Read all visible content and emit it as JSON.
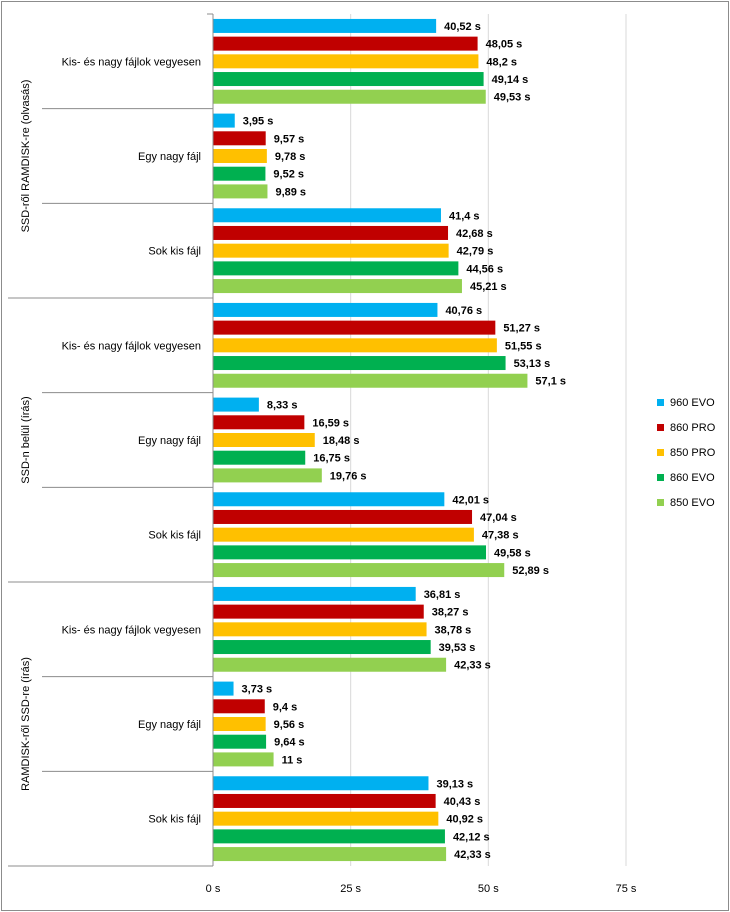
{
  "chart_data": {
    "type": "bar",
    "orientation": "horizontal",
    "unit": "s",
    "xlim": [
      0,
      75
    ],
    "xticks": [
      0,
      25,
      50,
      75
    ],
    "xtick_labels": [
      "0 s",
      "25 s",
      "50 s",
      "75 s"
    ],
    "grid": true,
    "legend_position": "right",
    "series": [
      {
        "name": "960 EVO",
        "color": "#00b0f0"
      },
      {
        "name": "860 PRO",
        "color": "#c00000"
      },
      {
        "name": "850 PRO",
        "color": "#ffc000"
      },
      {
        "name": "860 EVO",
        "color": "#00b050"
      },
      {
        "name": "850 EVO",
        "color": "#92d050"
      }
    ],
    "groups": [
      {
        "name": "SSD-ről RAMDISK-re (olvasás)",
        "categories": [
          {
            "name": "Kis- és nagy fájlok vegyesen",
            "values": [
              40.52,
              48.05,
              48.2,
              49.14,
              49.53
            ],
            "labels": [
              "40,52 s",
              "48,05 s",
              "48,2 s",
              "49,14 s",
              "49,53 s"
            ]
          },
          {
            "name": "Egy nagy fájl",
            "values": [
              3.95,
              9.57,
              9.78,
              9.52,
              9.89
            ],
            "labels": [
              "3,95 s",
              "9,57 s",
              "9,78 s",
              "9,52 s",
              "9,89 s"
            ]
          },
          {
            "name": "Sok kis fájl",
            "values": [
              41.4,
              42.68,
              42.79,
              44.56,
              45.21
            ],
            "labels": [
              "41,4 s",
              "42,68 s",
              "42,79 s",
              "44,56 s",
              "45,21 s"
            ]
          }
        ]
      },
      {
        "name": "SSD-n belül (írás)",
        "categories": [
          {
            "name": "Kis- és nagy fájlok vegyesen",
            "values": [
              40.76,
              51.27,
              51.55,
              53.13,
              57.1
            ],
            "labels": [
              "40,76 s",
              "51,27 s",
              "51,55 s",
              "53,13 s",
              "57,1 s"
            ]
          },
          {
            "name": "Egy nagy fájl",
            "values": [
              8.33,
              16.59,
              18.48,
              16.75,
              19.76
            ],
            "labels": [
              "8,33 s",
              "16,59 s",
              "18,48 s",
              "16,75 s",
              "19,76 s"
            ]
          },
          {
            "name": "Sok kis fájl",
            "values": [
              42.01,
              47.04,
              47.38,
              49.58,
              52.89
            ],
            "labels": [
              "42,01 s",
              "47,04 s",
              "47,38 s",
              "49,58 s",
              "52,89 s"
            ]
          }
        ]
      },
      {
        "name": "RAMDISK-ről SSD-re (írás)",
        "categories": [
          {
            "name": "Kis- és nagy fájlok vegyesen",
            "values": [
              36.81,
              38.27,
              38.78,
              39.53,
              42.33
            ],
            "labels": [
              "36,81 s",
              "38,27 s",
              "38,78 s",
              "39,53 s",
              "42,33 s"
            ]
          },
          {
            "name": "Egy nagy fájl",
            "values": [
              3.73,
              9.4,
              9.56,
              9.64,
              11
            ],
            "labels": [
              "3,73 s",
              "9,4 s",
              "9,56 s",
              "9,64 s",
              "11 s"
            ]
          },
          {
            "name": "Sok kis fájl",
            "values": [
              39.13,
              40.43,
              40.92,
              42.12,
              42.33
            ],
            "labels": [
              "39,13 s",
              "40,43 s",
              "40,92 s",
              "42,12 s",
              "42,33 s"
            ]
          }
        ]
      }
    ]
  }
}
